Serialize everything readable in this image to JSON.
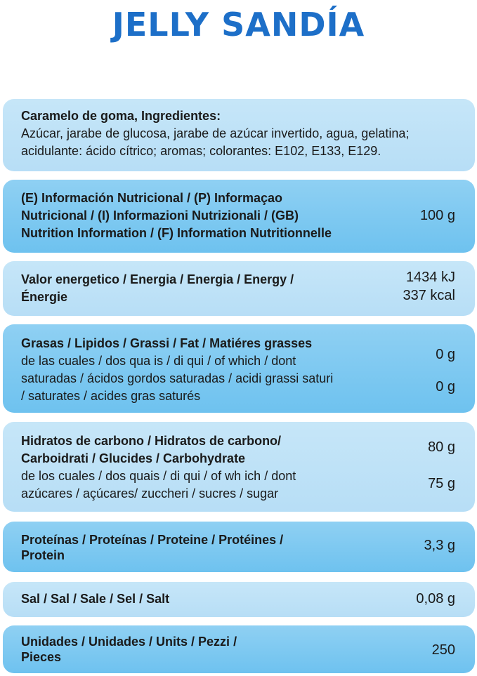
{
  "title": "JELLY SANDÍA",
  "ingredients": {
    "heading": "Caramelo de goma, Ingredientes:",
    "line1": "Azúcar, jarabe de glucosa, jarabe de azúcar invertido, agua, gelatina;",
    "line2": "acidulante: ácido cítrico; aromas; colorantes: E102, E133, E129."
  },
  "info": {
    "line1": "(E) Información Nutricional / (P) Informaçao",
    "line2": "Nutricional / (I) Informazioni Nutrizionali / (GB)",
    "line3": "Nutrition Information / (F) Information Nutritionnelle",
    "value": "100 g"
  },
  "energy": {
    "line1": "Valor energetico / Energia / Energia / Energy /",
    "line2": "Énergie",
    "kj": "1434 kJ",
    "kcal": "337 kcal"
  },
  "fat": {
    "line1": "Grasas / Lipidos / Grassi / Fat / Matiéres grasses",
    "line2": "de las cuales / dos qua is / di qui / of which / dont",
    "line3": "saturadas / ácidos gordos saturadas / acidi grassi saturi",
    "line4": "/ saturates / acides gras saturés",
    "value1": "0 g",
    "value2": "0 g"
  },
  "carbs": {
    "line1": "Hidratos de carbono / Hidratos de carbono/",
    "line2": "Carboidrati / Glucides / Carbohydrate",
    "line3": "de los cuales / dos quais / di qui / of wh ich / dont",
    "line4": "azúcares / açúcares/ zuccheri / sucres / sugar",
    "value1": "80 g",
    "value2": "75 g"
  },
  "protein": {
    "line1": "Proteínas / Proteínas / Proteine / Protéines /",
    "line2": "Protein",
    "value": "3,3 g"
  },
  "salt": {
    "line1": "Sal / Sal / Sale / Sel / Salt",
    "value": "0,08 g"
  },
  "units": {
    "line1": "Unidades / Unidades / Units / Pezzi /",
    "line2": "Pieces",
    "value": "250"
  }
}
